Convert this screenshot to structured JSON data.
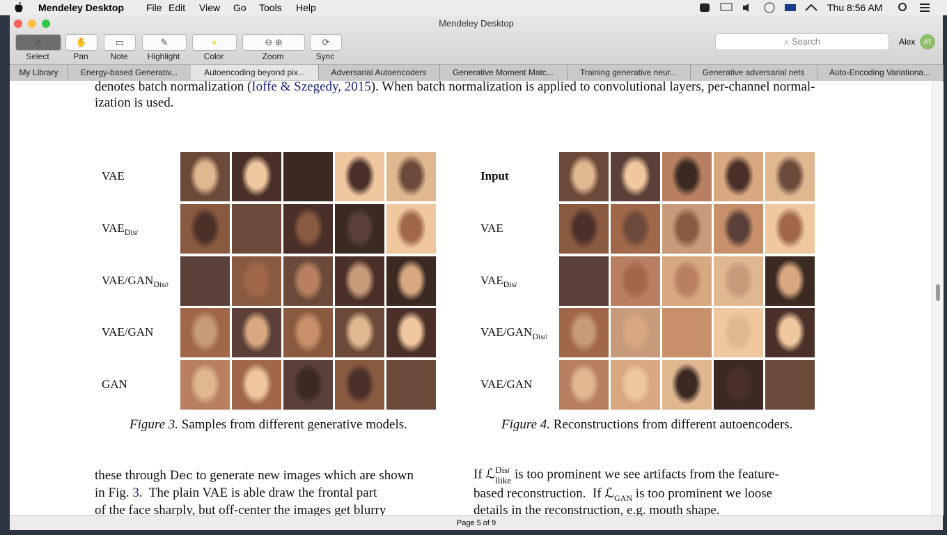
{
  "menubar": {
    "app": "Mendeley Desktop",
    "menus": [
      "File",
      "Edit",
      "View",
      "Go",
      "Tools",
      "Help"
    ],
    "clock": "Thu 8:56 AM"
  },
  "window": {
    "title": "Mendeley Desktop"
  },
  "toolbar": {
    "tools": [
      "Select",
      "Pan",
      "Note",
      "Highlight",
      "Color",
      "Zoom",
      "Sync"
    ],
    "search": "Search",
    "user": "Alex",
    "avatar": "AT"
  },
  "tabs": [
    "My Library",
    "Energy-based Generativ...",
    "Autoencoding beyond pix...",
    "Adversarial Autoencoders",
    "Generative Moment Matc...",
    "Training generative neur...",
    "Generative adversarial nets",
    "Auto-Encoding Variationa..."
  ],
  "document": {
    "intro": {
      "line1_start": "denotes batch normalization (",
      "citation": "Ioffe & Szegedy, 2015",
      "line1_end": "). When batch normalization is applied to convolutional layers, per-channel normal-",
      "line2": "ization is used."
    },
    "figure3": {
      "rows": [
        {
          "label": "VAE"
        },
        {
          "label": "VAE",
          "sub": "Dis",
          "index": "l"
        },
        {
          "label": "VAE/GAN",
          "sub": "Dis",
          "index": "0"
        },
        {
          "label": "VAE/GAN"
        },
        {
          "label": "GAN"
        }
      ],
      "caption_label": "Figure 3.",
      "caption": "Samples from different generative models."
    },
    "figure4": {
      "rows": [
        {
          "label": "Input"
        },
        {
          "label": "VAE"
        },
        {
          "label": "VAE",
          "sub": "Dis",
          "index": "l"
        },
        {
          "label": "VAE/GAN",
          "sub": "Dis",
          "index": "0"
        },
        {
          "label": "VAE/GAN"
        }
      ],
      "caption_label": "Figure 4.",
      "caption": "Reconstructions from different autoencoders."
    },
    "left_column": {
      "l1_start": "these through ",
      "l1_dec": "Dec",
      "l1_end": " to generate new images which are shown",
      "l2_start": "in Fig. ",
      "l2_ref": "3",
      "l2_end": ".  The plain VAE is able draw the frontal part",
      "l3": "of the face sharply, but off-center the images get blurry"
    },
    "right_column": {
      "l1_start": "If ",
      "loss": "ℒ",
      "l1_sup": "Dis",
      "l1_sup_index": "l",
      "l1_sub": "llike",
      "l1_end": " is too prominent we see artifacts from the feature-",
      "l2_start": "based reconstruction.  If ",
      "l2_sub": "GAN",
      "l2_end": " is too prominent we loose",
      "l3": "details in the reconstruction, e.g. mouth shape."
    }
  },
  "status": "Page 5 of 9"
}
